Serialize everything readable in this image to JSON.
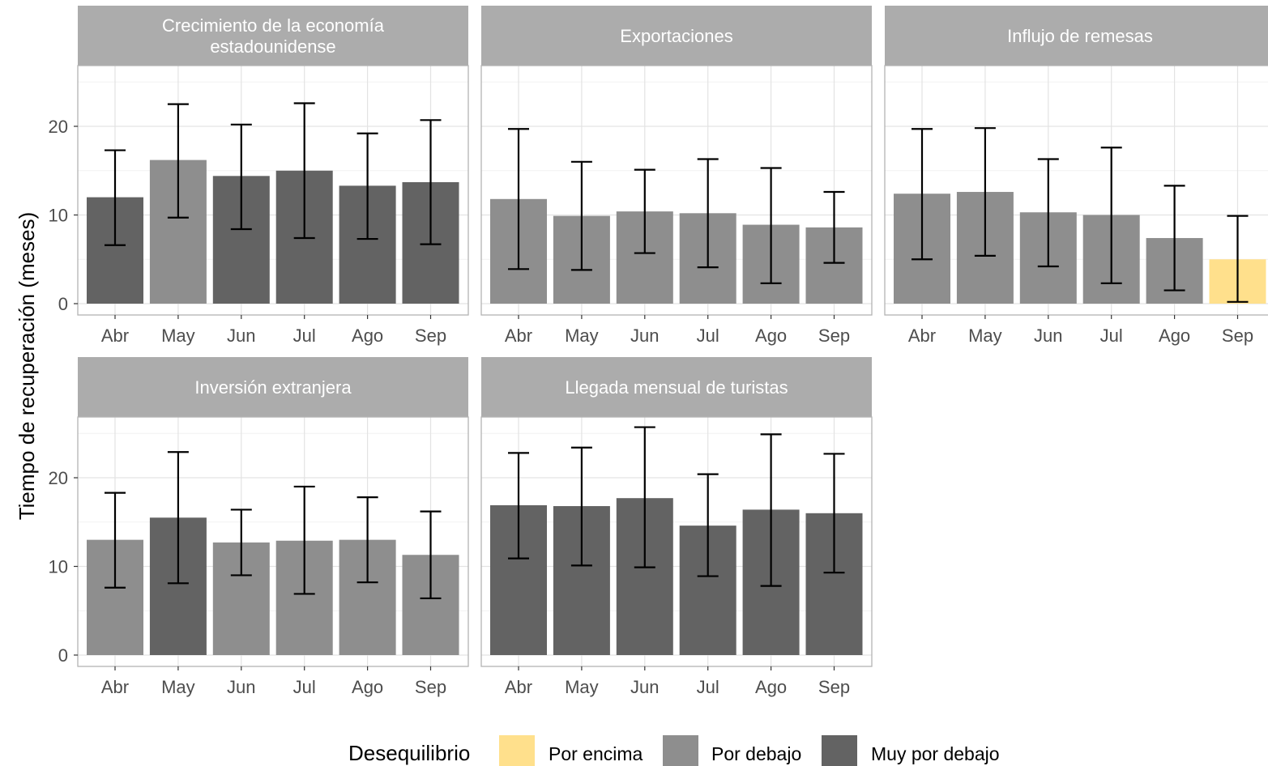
{
  "chart_data": {
    "type": "bar",
    "ylabel": "Tiempo de recuperación (meses)",
    "xlabel": "",
    "categories": [
      "Abr",
      "May",
      "Jun",
      "Jul",
      "Ago",
      "Sep"
    ],
    "ylim": [
      0,
      25
    ],
    "yticks": [
      "0",
      "10",
      "20"
    ],
    "grid": true,
    "colors": {
      "Por encima": "#ffe08c",
      "Por debajo": "#8e8e8e",
      "Muy por debajo": "#636363"
    },
    "legend": {
      "title": "Desequilibrio",
      "position": "bottom",
      "items": [
        "Por encima",
        "Por debajo",
        "Muy por debajo"
      ]
    },
    "panels": [
      {
        "title": [
          "Crecimiento de la economía",
          "estadounidense"
        ],
        "values": [
          12,
          16.2,
          14.4,
          15,
          13.3,
          13.7
        ],
        "lower": [
          6.6,
          9.7,
          8.4,
          7.4,
          7.3,
          6.7
        ],
        "upper": [
          17.3,
          22.5,
          20.2,
          22.6,
          19.2,
          20.7
        ],
        "category": [
          "Muy por debajo",
          "Por debajo",
          "Muy por debajo",
          "Muy por debajo",
          "Muy por debajo",
          "Muy por debajo"
        ]
      },
      {
        "title": [
          "Exportaciones"
        ],
        "values": [
          11.8,
          9.9,
          10.4,
          10.2,
          8.9,
          8.6
        ],
        "lower": [
          3.9,
          3.8,
          5.7,
          4.1,
          2.3,
          4.6
        ],
        "upper": [
          19.7,
          16,
          15.1,
          16.3,
          15.3,
          12.6
        ],
        "category": [
          "Por debajo",
          "Por debajo",
          "Por debajo",
          "Por debajo",
          "Por debajo",
          "Por debajo"
        ]
      },
      {
        "title": [
          "Influjo de remesas"
        ],
        "values": [
          12.4,
          12.6,
          10.3,
          10,
          7.4,
          5
        ],
        "lower": [
          5,
          5.4,
          4.2,
          2.3,
          1.5,
          0.2
        ],
        "upper": [
          19.7,
          19.8,
          16.3,
          17.6,
          13.3,
          9.9
        ],
        "category": [
          "Por debajo",
          "Por debajo",
          "Por debajo",
          "Por debajo",
          "Por debajo",
          "Por encima"
        ]
      },
      {
        "title": [
          "Inversión extranjera"
        ],
        "values": [
          13,
          15.5,
          12.7,
          12.9,
          13,
          11.3
        ],
        "lower": [
          7.6,
          8.1,
          9,
          6.9,
          8.2,
          6.4
        ],
        "upper": [
          18.3,
          22.9,
          16.4,
          19,
          17.8,
          16.2
        ],
        "category": [
          "Por debajo",
          "Muy por debajo",
          "Por debajo",
          "Por debajo",
          "Por debajo",
          "Por debajo"
        ]
      },
      {
        "title": [
          "Llegada mensual de turistas"
        ],
        "values": [
          16.9,
          16.8,
          17.7,
          14.6,
          16.4,
          16
        ],
        "lower": [
          10.9,
          10.1,
          9.9,
          8.9,
          7.8,
          9.3
        ],
        "upper": [
          22.8,
          23.4,
          25.7,
          20.4,
          24.9,
          22.7
        ],
        "category": [
          "Muy por debajo",
          "Muy por debajo",
          "Muy por debajo",
          "Muy por debajo",
          "Muy por debajo",
          "Muy por debajo"
        ]
      }
    ]
  }
}
